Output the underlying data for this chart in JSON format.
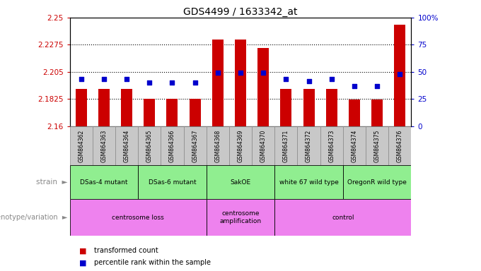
{
  "title": "GDS4499 / 1633342_at",
  "samples": [
    "GSM864362",
    "GSM864363",
    "GSM864364",
    "GSM864365",
    "GSM864366",
    "GSM864367",
    "GSM864368",
    "GSM864369",
    "GSM864370",
    "GSM864371",
    "GSM864372",
    "GSM864373",
    "GSM864374",
    "GSM864375",
    "GSM864376"
  ],
  "red_values": [
    2.191,
    2.191,
    2.191,
    2.1825,
    2.1825,
    2.1825,
    2.232,
    2.232,
    2.225,
    2.191,
    2.191,
    2.191,
    2.182,
    2.182,
    2.244
  ],
  "blue_values": [
    2.199,
    2.199,
    2.199,
    2.196,
    2.196,
    2.196,
    2.204,
    2.204,
    2.204,
    2.199,
    2.197,
    2.199,
    2.193,
    2.193,
    2.203
  ],
  "ylim_left": [
    2.16,
    2.25
  ],
  "ylim_right": [
    0,
    100
  ],
  "yticks_left": [
    2.16,
    2.1825,
    2.205,
    2.2275,
    2.25
  ],
  "ytick_labels_left": [
    "2.16",
    "2.1825",
    "2.205",
    "2.2275",
    "2.25"
  ],
  "ytick_vals_right": [
    0,
    25,
    50,
    75,
    100
  ],
  "ytick_labels_right": [
    "0",
    "25",
    "50",
    "75",
    "100%"
  ],
  "hlines": [
    2.1825,
    2.205,
    2.2275
  ],
  "strain_groups": [
    {
      "label": "DSas-4 mutant",
      "start": 0,
      "end": 3,
      "color": "#90ee90"
    },
    {
      "label": "DSas-6 mutant",
      "start": 3,
      "end": 6,
      "color": "#90ee90"
    },
    {
      "label": "SakOE",
      "start": 6,
      "end": 9,
      "color": "#90ee90"
    },
    {
      "label": "white 67 wild type",
      "start": 9,
      "end": 12,
      "color": "#90ee90"
    },
    {
      "label": "OregonR wild type",
      "start": 12,
      "end": 15,
      "color": "#90ee90"
    }
  ],
  "geno_groups": [
    {
      "label": "centrosome loss",
      "start": 0,
      "end": 6,
      "color": "#ee82ee"
    },
    {
      "label": "centrosome\namplification",
      "start": 6,
      "end": 9,
      "color": "#ee82ee"
    },
    {
      "label": "control",
      "start": 9,
      "end": 15,
      "color": "#ee82ee"
    }
  ],
  "bar_color": "#cc0000",
  "dot_color": "#0000cc",
  "bar_width": 0.5,
  "dot_size": 25,
  "background_color": "#ffffff",
  "tick_label_color_left": "#cc0000",
  "tick_label_color_right": "#0000cc",
  "legend_red": "transformed count",
  "legend_blue": "percentile rank within the sample",
  "xtick_bg": "#c8c8c8",
  "arrow_color": "#888888"
}
